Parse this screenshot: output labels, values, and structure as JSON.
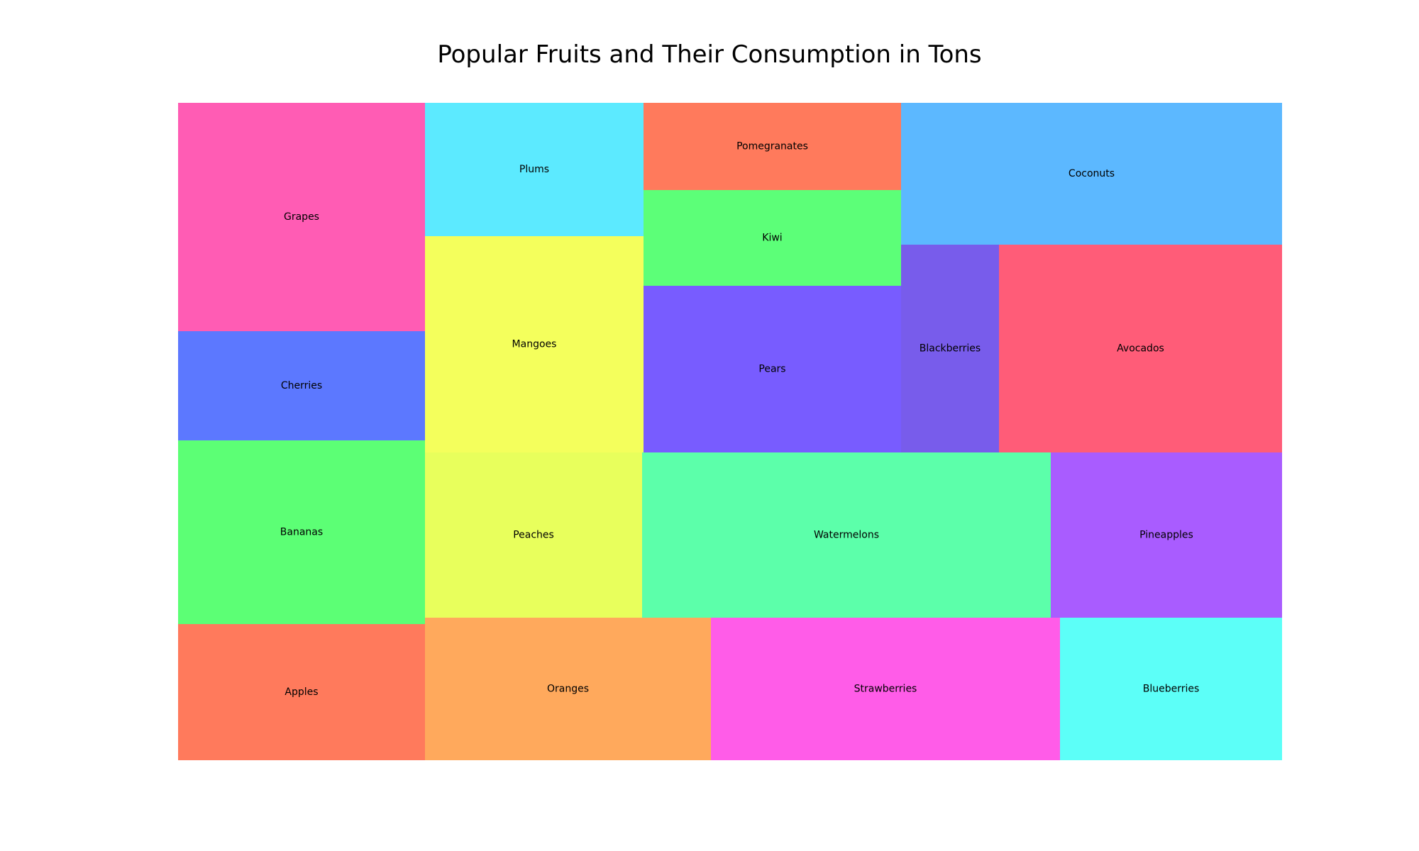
{
  "chart_data": {
    "type": "treemap",
    "title": "Popular Fruits and Their Consumption in Tons",
    "items": [
      {
        "name": "Apples",
        "color": "#ff7a5c"
      },
      {
        "name": "Bananas",
        "color": "#5cff75"
      },
      {
        "name": "Cherries",
        "color": "#5c78ff"
      },
      {
        "name": "Grapes",
        "color": "#ff5cb4"
      },
      {
        "name": "Oranges",
        "color": "#ffa95c"
      },
      {
        "name": "Peaches",
        "color": "#e8ff5c"
      },
      {
        "name": "Mangoes",
        "color": "#f4ff5c"
      },
      {
        "name": "Plums",
        "color": "#5ceaff"
      },
      {
        "name": "Strawberries",
        "color": "#ff5ce8"
      },
      {
        "name": "Watermelons",
        "color": "#5cffaa"
      },
      {
        "name": "Pears",
        "color": "#785cff"
      },
      {
        "name": "Kiwi",
        "color": "#5cff78"
      },
      {
        "name": "Pomegranates",
        "color": "#ff7a5c"
      },
      {
        "name": "Blueberries",
        "color": "#5cfff8"
      },
      {
        "name": "Pineapples",
        "color": "#a95cff"
      },
      {
        "name": "Blackberries",
        "color": "#785ceb"
      },
      {
        "name": "Avocados",
        "color": "#ff5c78"
      },
      {
        "name": "Coconuts",
        "color": "#5cb8ff"
      }
    ]
  }
}
